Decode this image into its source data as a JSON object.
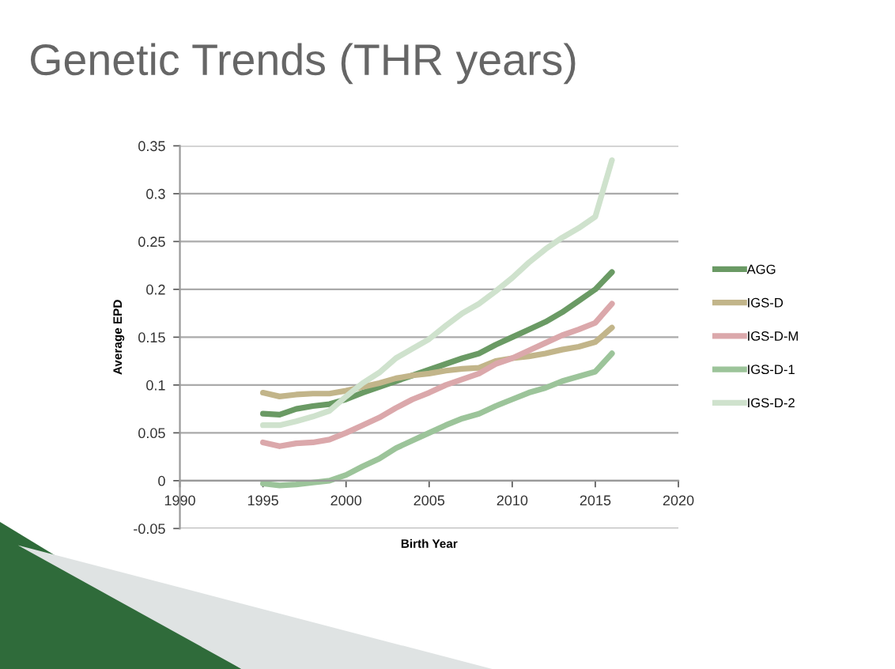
{
  "chart_data": {
    "type": "line",
    "title": "Genetic Trends (THR years)",
    "xlabel": "Birth Year",
    "ylabel": "Average EPD",
    "x": [
      1995,
      1996,
      1997,
      1998,
      1999,
      2000,
      2001,
      2002,
      2003,
      2004,
      2005,
      2006,
      2007,
      2008,
      2009,
      2010,
      2011,
      2012,
      2013,
      2014,
      2015,
      2016
    ],
    "series": [
      {
        "name": "AGG",
        "color": "#6a9a64",
        "values": [
          0.07,
          0.069,
          0.075,
          0.078,
          0.08,
          0.085,
          0.092,
          0.098,
          0.104,
          0.11,
          0.116,
          0.122,
          0.128,
          0.133,
          0.142,
          0.15,
          0.158,
          0.166,
          0.176,
          0.188,
          0.2,
          0.218
        ]
      },
      {
        "name": "IGS-D",
        "color": "#c2b58a",
        "values": [
          0.092,
          0.088,
          0.09,
          0.091,
          0.091,
          0.094,
          0.098,
          0.102,
          0.107,
          0.11,
          0.112,
          0.115,
          0.117,
          0.118,
          0.125,
          0.128,
          0.13,
          0.133,
          0.137,
          0.14,
          0.145,
          0.16
        ]
      },
      {
        "name": "IGS-D-M",
        "color": "#dba8ab",
        "values": [
          0.04,
          0.036,
          0.039,
          0.04,
          0.043,
          0.05,
          0.058,
          0.066,
          0.076,
          0.085,
          0.092,
          0.1,
          0.106,
          0.112,
          0.122,
          0.128,
          0.136,
          0.144,
          0.152,
          0.158,
          0.165,
          0.185
        ]
      },
      {
        "name": "IGS-D-1",
        "color": "#9cc49a",
        "values": [
          -0.003,
          -0.005,
          -0.004,
          -0.002,
          0.0,
          0.006,
          0.015,
          0.023,
          0.034,
          0.042,
          0.05,
          0.058,
          0.065,
          0.07,
          0.078,
          0.085,
          0.092,
          0.097,
          0.104,
          0.109,
          0.114,
          0.133
        ]
      },
      {
        "name": "IGS-D-2",
        "color": "#cfe2cd",
        "values": [
          0.058,
          0.058,
          0.062,
          0.067,
          0.073,
          0.088,
          0.102,
          0.113,
          0.128,
          0.138,
          0.148,
          0.162,
          0.175,
          0.185,
          0.198,
          0.212,
          0.228,
          0.242,
          0.254,
          0.264,
          0.276,
          0.335
        ]
      }
    ],
    "xlim": [
      1990,
      2020
    ],
    "xticks": [
      1990,
      1995,
      2000,
      2005,
      2010,
      2015,
      2020
    ],
    "ylim": [
      -0.05,
      0.35
    ],
    "yticks": [
      -0.05,
      0,
      0.05,
      0.1,
      0.15,
      0.2,
      0.25,
      0.3,
      0.35
    ],
    "grid": "y",
    "legend": "right",
    "line_style": "solid",
    "marker": "none"
  }
}
